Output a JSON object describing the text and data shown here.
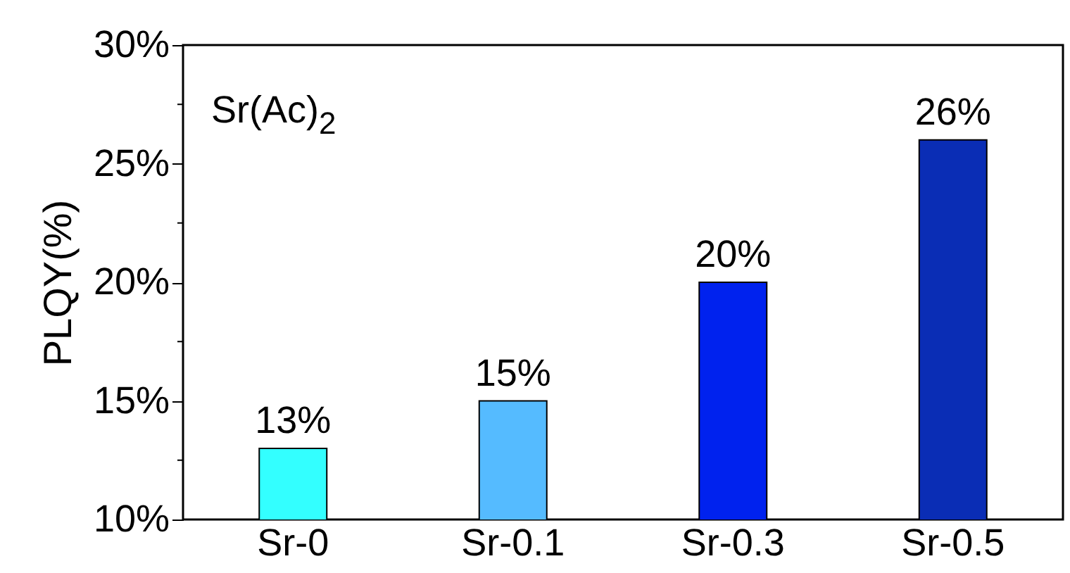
{
  "chart_data": {
    "type": "bar",
    "ylabel": "PLQY(%)",
    "categories": [
      "Sr-0",
      "Sr-0.1",
      "Sr-0.3",
      "Sr-0.5"
    ],
    "values": [
      13,
      15,
      20,
      26
    ],
    "colors": [
      "#33ffff",
      "#55bbff",
      "#0022ee",
      "#0a2db5"
    ],
    "value_labels": [
      "13%",
      "15%",
      "20%",
      "26%"
    ],
    "ylim": [
      10,
      30
    ],
    "yticks": [
      {
        "value": 10,
        "label": "10%"
      },
      {
        "value": 12.5,
        "label": null
      },
      {
        "value": 15,
        "label": "15%"
      },
      {
        "value": 17.5,
        "label": null
      },
      {
        "value": 20,
        "label": "20%"
      },
      {
        "value": 22.5,
        "label": null
      },
      {
        "value": 25,
        "label": "25%"
      },
      {
        "value": 27.5,
        "label": null
      },
      {
        "value": 30,
        "label": "30%"
      }
    ],
    "annotations": [
      "Sr(Ac)$_{2}$"
    ],
    "grid": false
  }
}
